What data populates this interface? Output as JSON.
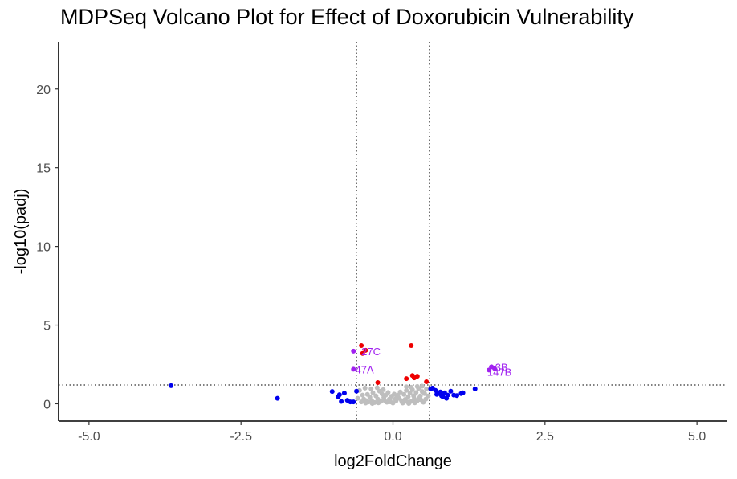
{
  "chart_data": {
    "type": "scatter",
    "title": "MDPSeq Volcano Plot for Effect of Doxorubicin Vulnerability",
    "xlabel": "log2FoldChange",
    "ylabel": "-log10(padj)",
    "xlim": [
      -5.5,
      5.5
    ],
    "ylim": [
      -1.1,
      23
    ],
    "x_ticks": [
      -5.0,
      -2.5,
      0.0,
      2.5,
      5.0
    ],
    "x_tick_labels": [
      "-5.0",
      "-2.5",
      "0.0",
      "2.5",
      "5.0"
    ],
    "y_ticks": [
      0,
      5,
      10,
      15,
      20
    ],
    "y_tick_labels": [
      "0",
      "5",
      "10",
      "15",
      "20"
    ],
    "thresholds": {
      "x": [
        -0.6,
        0.6
      ],
      "y": 1.2,
      "style": "dotted"
    },
    "grid": false,
    "colors": {
      "not_significant": "#bebebe",
      "significant_padj": "#0000ee",
      "significant_fc": "#ee0000",
      "labeled": "#a020f0"
    },
    "series": [
      {
        "color_key": "not_significant",
        "points": [
          [
            -0.45,
            0.05
          ],
          [
            -0.4,
            0.12
          ],
          [
            -0.35,
            0.2
          ],
          [
            -0.3,
            0.08
          ],
          [
            -0.25,
            0.3
          ],
          [
            -0.2,
            0.15
          ],
          [
            -0.15,
            0.4
          ],
          [
            -0.1,
            0.1
          ],
          [
            -0.05,
            0.25
          ],
          [
            0.0,
            0.05
          ],
          [
            0.05,
            0.18
          ],
          [
            0.1,
            0.35
          ],
          [
            0.15,
            0.1
          ],
          [
            0.2,
            0.28
          ],
          [
            0.25,
            0.45
          ],
          [
            0.3,
            0.15
          ],
          [
            0.35,
            0.32
          ],
          [
            0.4,
            0.2
          ],
          [
            0.45,
            0.5
          ],
          [
            0.5,
            0.1
          ],
          [
            -0.5,
            0.55
          ],
          [
            -0.48,
            0.3
          ],
          [
            -0.42,
            0.6
          ],
          [
            -0.38,
            0.42
          ],
          [
            -0.33,
            0.7
          ],
          [
            -0.28,
            0.5
          ],
          [
            -0.22,
            0.8
          ],
          [
            -0.18,
            0.62
          ],
          [
            -0.12,
            0.55
          ],
          [
            -0.08,
            0.72
          ],
          [
            -0.02,
            0.48
          ],
          [
            0.02,
            0.62
          ],
          [
            0.08,
            0.55
          ],
          [
            0.12,
            0.75
          ],
          [
            0.18,
            0.6
          ],
          [
            0.22,
            0.85
          ],
          [
            0.28,
            0.68
          ],
          [
            0.32,
            0.9
          ],
          [
            0.38,
            0.72
          ],
          [
            0.42,
            0.98
          ],
          [
            0.48,
            0.78
          ],
          [
            0.52,
            0.65
          ],
          [
            0.55,
            0.95
          ],
          [
            -0.55,
            0.85
          ],
          [
            -0.46,
            1.0
          ],
          [
            -0.36,
            0.95
          ],
          [
            -0.26,
            1.02
          ],
          [
            -0.16,
            0.9
          ],
          [
            -0.06,
            0.3
          ],
          [
            0.06,
            0.4
          ],
          [
            0.16,
            0.05
          ],
          [
            0.26,
            0.02
          ],
          [
            0.36,
            0.06
          ],
          [
            0.46,
            0.25
          ],
          [
            -0.44,
            0.2
          ],
          [
            -0.34,
            0.02
          ],
          [
            -0.24,
            0.06
          ],
          [
            -0.14,
            0.22
          ],
          [
            -0.04,
            0.12
          ],
          [
            0.04,
            0.3
          ],
          [
            0.14,
            0.2
          ],
          [
            0.24,
            0.12
          ],
          [
            0.34,
            0.5
          ],
          [
            0.44,
            0.4
          ],
          [
            0.54,
            0.3
          ],
          [
            -0.52,
            0.12
          ],
          [
            0.58,
            0.5
          ],
          [
            -0.58,
            0.35
          ],
          [
            0.3,
            1.05
          ],
          [
            0.22,
            1.08
          ],
          [
            0.4,
            1.1
          ],
          [
            0.48,
            1.12
          ]
        ]
      },
      {
        "color_key": "significant_padj",
        "points": [
          [
            -3.65,
            1.15
          ],
          [
            -1.9,
            0.35
          ],
          [
            -1.0,
            0.78
          ],
          [
            -0.9,
            0.45
          ],
          [
            -0.88,
            0.58
          ],
          [
            -0.85,
            0.15
          ],
          [
            -0.8,
            0.68
          ],
          [
            -0.75,
            0.22
          ],
          [
            -0.7,
            0.12
          ],
          [
            -0.65,
            0.12
          ],
          [
            -0.6,
            0.8
          ],
          [
            0.62,
            0.95
          ],
          [
            0.65,
            1.0
          ],
          [
            0.7,
            0.85
          ],
          [
            0.72,
            0.6
          ],
          [
            0.78,
            0.75
          ],
          [
            0.8,
            0.5
          ],
          [
            0.85,
            0.7
          ],
          [
            0.88,
            0.35
          ],
          [
            0.9,
            0.55
          ],
          [
            0.95,
            0.8
          ],
          [
            1.0,
            0.55
          ],
          [
            1.05,
            0.52
          ],
          [
            1.12,
            0.65
          ],
          [
            1.15,
            0.7
          ],
          [
            1.35,
            0.95
          ],
          [
            0.75,
            0.65
          ],
          [
            0.82,
            0.45
          ]
        ]
      },
      {
        "color_key": "significant_fc",
        "points": [
          [
            -0.52,
            3.7
          ],
          [
            -0.5,
            3.2
          ],
          [
            -0.45,
            3.4
          ],
          [
            -0.25,
            1.35
          ],
          [
            0.22,
            1.6
          ],
          [
            0.3,
            3.7
          ],
          [
            0.32,
            1.8
          ],
          [
            0.35,
            1.65
          ],
          [
            0.4,
            1.75
          ],
          [
            0.55,
            1.4
          ]
        ]
      },
      {
        "color_key": "labeled",
        "points": [
          [
            -0.65,
            3.35
          ],
          [
            -0.65,
            2.2
          ],
          [
            1.58,
            2.15
          ],
          [
            1.62,
            2.35
          ],
          [
            1.67,
            2.25
          ]
        ]
      }
    ],
    "annotations": [
      {
        "text": "27C",
        "x": -0.52,
        "y": 3.35
      },
      {
        "text": "47A",
        "x": -0.62,
        "y": 2.2
      },
      {
        "text": "3B",
        "x": 1.68,
        "y": 2.35
      },
      {
        "text": "147B",
        "x": 1.55,
        "y": 2.05
      }
    ]
  }
}
